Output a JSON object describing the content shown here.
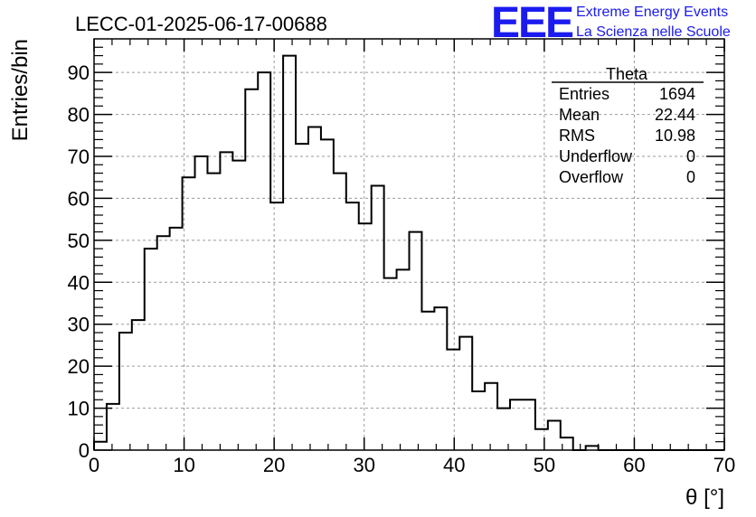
{
  "title": "LECC-01-2025-06-17-00688",
  "logo": {
    "mark": "EEE",
    "line1": "Extreme Energy Events",
    "line2": "La Scienza nelle Scuole",
    "color": "#1b1bf0"
  },
  "stats": {
    "name": "Theta",
    "rows": [
      {
        "label": "Entries",
        "value": "1694"
      },
      {
        "label": "Mean",
        "value": "22.44"
      },
      {
        "label": "RMS",
        "value": "10.98"
      },
      {
        "label": "Underflow",
        "value": "0"
      },
      {
        "label": "Overflow",
        "value": "0"
      }
    ]
  },
  "chart_data": {
    "type": "histogram",
    "xlabel": "θ [°]",
    "ylabel": "Entries/bin",
    "xlim": [
      0,
      70
    ],
    "ylim": [
      0,
      98
    ],
    "bin_width": 1.4,
    "x_ticks": [
      0,
      10,
      20,
      30,
      40,
      50,
      60,
      70
    ],
    "y_ticks": [
      0,
      10,
      20,
      30,
      40,
      50,
      60,
      70,
      80,
      90
    ],
    "grid": true,
    "values": [
      2,
      11,
      28,
      31,
      48,
      51,
      53,
      65,
      70,
      66,
      71,
      69,
      86,
      90,
      59,
      94,
      73,
      77,
      74,
      66,
      59,
      54,
      63,
      41,
      43,
      52,
      33,
      34,
      24,
      27,
      14,
      16,
      10,
      12,
      12,
      5,
      7,
      3,
      0,
      1,
      0,
      0,
      0,
      0,
      0,
      0,
      0,
      0,
      0,
      0
    ]
  }
}
